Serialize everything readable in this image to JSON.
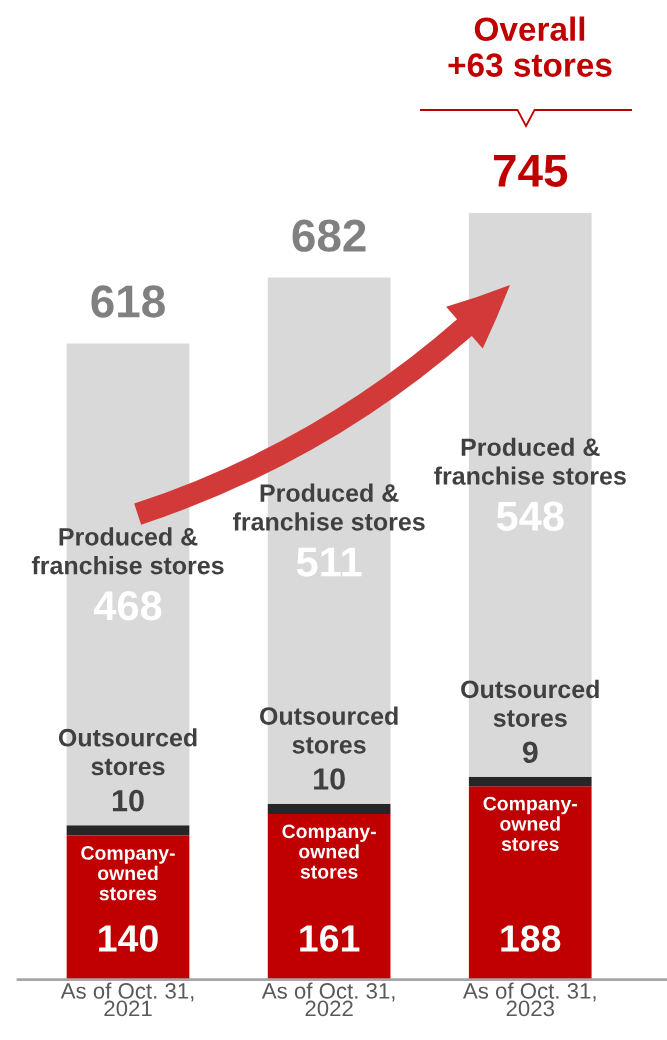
{
  "chart_data": {
    "type": "bar",
    "stacked": true,
    "categories": [
      "As of Oct. 31,\n2021",
      "As of Oct. 31,\n2022",
      "As of Oct. 31,\n2023"
    ],
    "series": [
      {
        "name": "Company-\nowned\nstores",
        "color": "#c00000",
        "values": [
          140,
          161,
          188
        ]
      },
      {
        "name": "Outsourced\nstores",
        "color": "#262626",
        "values": [
          10,
          10,
          9
        ]
      },
      {
        "name": "Produced &\nfranchise stores",
        "color": "#d9d9d9",
        "values": [
          468,
          511,
          548
        ]
      }
    ],
    "totals": [
      "618",
      "682",
      "745"
    ],
    "data_labels": true,
    "annotations": [
      "Overall\n+63 stores"
    ],
    "grid": false,
    "legend": false
  }
}
